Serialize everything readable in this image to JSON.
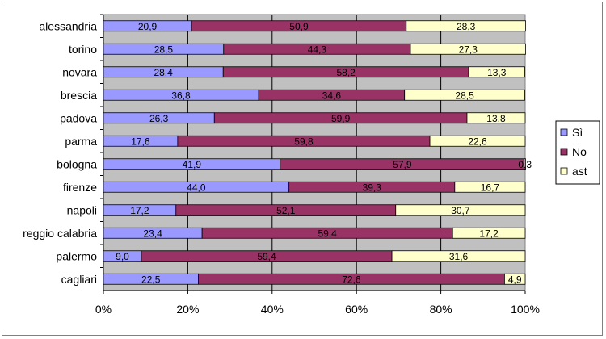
{
  "chart_data": {
    "type": "bar",
    "orientation": "horizontal",
    "stacked": "percent",
    "categories": [
      "alessandria",
      "torino",
      "novara",
      "brescia",
      "padova",
      "parma",
      "bologna",
      "firenze",
      "napoli",
      "reggio calabria",
      "palermo",
      "cagliari"
    ],
    "series": [
      {
        "name": "Sì",
        "color": "#9999ff",
        "values": [
          20.9,
          28.5,
          28.4,
          36.8,
          26.3,
          17.6,
          41.9,
          44.0,
          17.2,
          23.4,
          9.0,
          22.5
        ],
        "labels": [
          "20,9",
          "28,5",
          "28,4",
          "36,8",
          "26,3",
          "17,6",
          "41,9",
          "44,0",
          "17,2",
          "23,4",
          "9,0",
          "22,5"
        ]
      },
      {
        "name": "No",
        "color": "#993366",
        "values": [
          50.9,
          44.3,
          58.2,
          34.6,
          59.9,
          59.8,
          57.9,
          39.3,
          52.1,
          59.4,
          59.4,
          72.6
        ],
        "labels": [
          "50,9",
          "44,3",
          "58,2",
          "34,6",
          "59,9",
          "59,8",
          "57,9",
          "39,3",
          "52,1",
          "59,4",
          "59,4",
          "72,6"
        ]
      },
      {
        "name": "ast",
        "color": "#ffffcc",
        "values": [
          28.3,
          27.3,
          13.3,
          28.5,
          13.8,
          22.6,
          0.3,
          16.7,
          30.7,
          17.2,
          31.6,
          4.9
        ],
        "labels": [
          "28,3",
          "27,3",
          "13,3",
          "28,5",
          "13,8",
          "22,6",
          "0,3",
          "16,7",
          "30,7",
          "17,2",
          "31,6",
          "4,9"
        ]
      }
    ],
    "xticks": [
      "0%",
      "20%",
      "40%",
      "60%",
      "80%",
      "100%"
    ],
    "xlim": [
      0,
      100
    ],
    "grid": true,
    "plot_background": "#c0c0c0",
    "legend_position": "right",
    "title": "",
    "xlabel": "",
    "ylabel": ""
  }
}
